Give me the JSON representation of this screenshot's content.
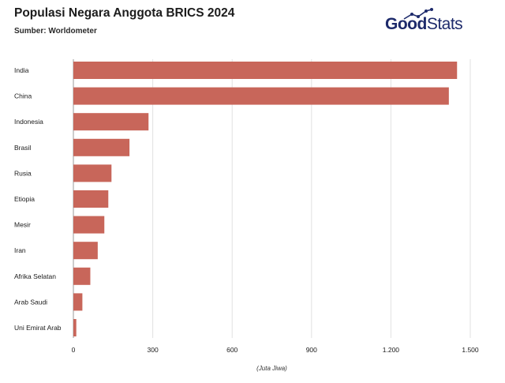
{
  "header": {
    "title": "Populasi Negara Anggota BRICS 2024",
    "subtitle": "Sumber: Worldometer"
  },
  "logo": {
    "part1": "Good",
    "part2": "Stats",
    "brand_color": "#1d2a6b",
    "icon": "sparkline-icon"
  },
  "chart_data": {
    "type": "bar",
    "orientation": "horizontal",
    "title": "Populasi Negara Anggota BRICS 2024",
    "subtitle": "Sumber: Worldometer",
    "xlabel": "(Juta Jiwa)",
    "ylabel": "",
    "categories": [
      "India",
      "China",
      "Indonesia",
      "Brasil",
      "Rusia",
      "Etiopia",
      "Mesir",
      "Iran",
      "Afrika Selatan",
      "Arab Saudi",
      "Uni Emirat Arab"
    ],
    "values": [
      1450,
      1419,
      284,
      212,
      144,
      132,
      117,
      92,
      64,
      34,
      11
    ],
    "xlim": [
      0,
      1500
    ],
    "ticks": [
      0,
      300,
      600,
      900,
      1200,
      1500
    ],
    "tick_labels": [
      "0",
      "300",
      "600",
      "900",
      "1.200",
      "1.500"
    ],
    "bar_color": "#c8665a",
    "grid": true,
    "legend": "none"
  }
}
